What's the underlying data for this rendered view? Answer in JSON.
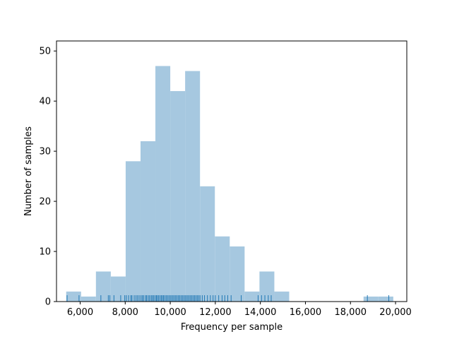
{
  "chart_data": {
    "type": "histogram",
    "title": "",
    "xlabel": "Frequency per sample",
    "ylabel": "Number of samples",
    "xlim": [
      4950,
      20500
    ],
    "ylim": [
      0,
      52
    ],
    "x_ticks": [
      6000,
      8000,
      10000,
      12000,
      14000,
      16000,
      18000,
      20000
    ],
    "x_tick_labels": [
      "6,000",
      "8,000",
      "10,000",
      "12,000",
      "14,000",
      "16,000",
      "18,000",
      "20,000"
    ],
    "y_ticks": [
      0,
      10,
      20,
      30,
      40,
      50
    ],
    "y_tick_labels": [
      "0",
      "10",
      "20",
      "30",
      "40",
      "50"
    ],
    "bar_color": "#a6c8e0",
    "rug_color": "#1f77b4",
    "grid": false,
    "bins": [
      {
        "x0": 5380,
        "x1": 6040,
        "count": 2
      },
      {
        "x0": 6040,
        "x1": 6700,
        "count": 1
      },
      {
        "x0": 6700,
        "x1": 7360,
        "count": 6
      },
      {
        "x0": 7360,
        "x1": 8020,
        "count": 5
      },
      {
        "x0": 8020,
        "x1": 8680,
        "count": 28
      },
      {
        "x0": 8680,
        "x1": 9340,
        "count": 32
      },
      {
        "x0": 9340,
        "x1": 10000,
        "count": 47
      },
      {
        "x0": 10000,
        "x1": 10660,
        "count": 42
      },
      {
        "x0": 10660,
        "x1": 11320,
        "count": 46
      },
      {
        "x0": 11320,
        "x1": 11980,
        "count": 23
      },
      {
        "x0": 11980,
        "x1": 12640,
        "count": 13
      },
      {
        "x0": 12640,
        "x1": 13300,
        "count": 11
      },
      {
        "x0": 13300,
        "x1": 13960,
        "count": 2
      },
      {
        "x0": 13960,
        "x1": 14620,
        "count": 6
      },
      {
        "x0": 14620,
        "x1": 15280,
        "count": 2
      },
      {
        "x0": 18580,
        "x1": 19240,
        "count": 1
      },
      {
        "x0": 19240,
        "x1": 19900,
        "count": 1
      }
    ],
    "rug": [
      5420,
      5950,
      6920,
      7250,
      7320,
      7500,
      7800,
      7980,
      8050,
      8150,
      8250,
      8300,
      8400,
      8480,
      8550,
      8620,
      8700,
      8760,
      8820,
      8900,
      8950,
      9020,
      9080,
      9150,
      9200,
      9260,
      9320,
      9380,
      9420,
      9480,
      9540,
      9600,
      9650,
      9700,
      9760,
      9820,
      9880,
      9940,
      10000,
      10060,
      10120,
      10180,
      10240,
      10300,
      10360,
      10420,
      10480,
      10540,
      10600,
      10660,
      10720,
      10780,
      10840,
      10900,
      10960,
      11020,
      11080,
      11140,
      11200,
      11260,
      11320,
      11420,
      11520,
      11650,
      11780,
      11900,
      12000,
      12150,
      12300,
      12420,
      12550,
      12700,
      13150,
      13900,
      14050,
      14200,
      14350,
      14480,
      18750,
      19700
    ]
  }
}
